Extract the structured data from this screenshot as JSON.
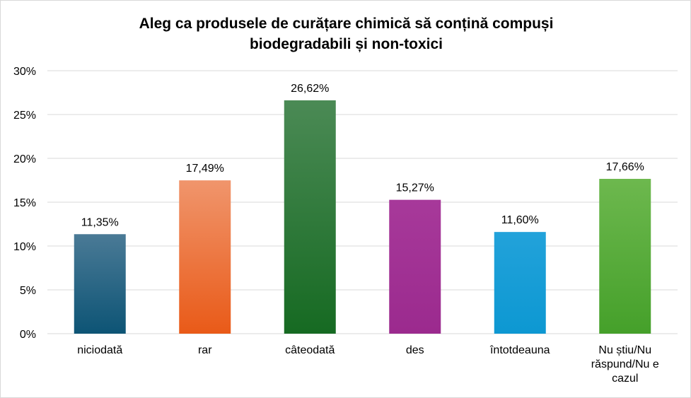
{
  "chart_data": {
    "type": "bar",
    "title_lines": [
      "Aleg ca produsele de curățare chimică să conțină compuși",
      "biodegradabili și non-toxici"
    ],
    "categories": [
      [
        "niciodată"
      ],
      [
        "rar"
      ],
      [
        "câteodată"
      ],
      [
        "des"
      ],
      [
        "întotdeauna"
      ],
      [
        "Nu știu/Nu",
        "răspund/Nu e",
        "cazul"
      ]
    ],
    "values": [
      11.35,
      17.49,
      26.62,
      15.27,
      11.6,
      17.66
    ],
    "data_labels": [
      "11,35%",
      "17,49%",
      "26,62%",
      "15,27%",
      "11,60%",
      "17,66%"
    ],
    "y_ticks": [
      0,
      5,
      10,
      15,
      20,
      25,
      30
    ],
    "y_tick_labels": [
      "0%",
      "5%",
      "10%",
      "15%",
      "20%",
      "25%",
      "30%"
    ],
    "ylim": [
      0,
      30
    ],
    "grid": true,
    "colors": [
      [
        "#4a7a96",
        "#0d5475"
      ],
      [
        "#f0956c",
        "#e95a18"
      ],
      [
        "#4b8a55",
        "#166a22"
      ],
      [
        "#a7399a",
        "#9b2a8e"
      ],
      [
        "#22a2da",
        "#0d98d2"
      ],
      [
        "#6db84e",
        "#45a02a"
      ]
    ],
    "gridline_color": "#d9d9d9"
  }
}
